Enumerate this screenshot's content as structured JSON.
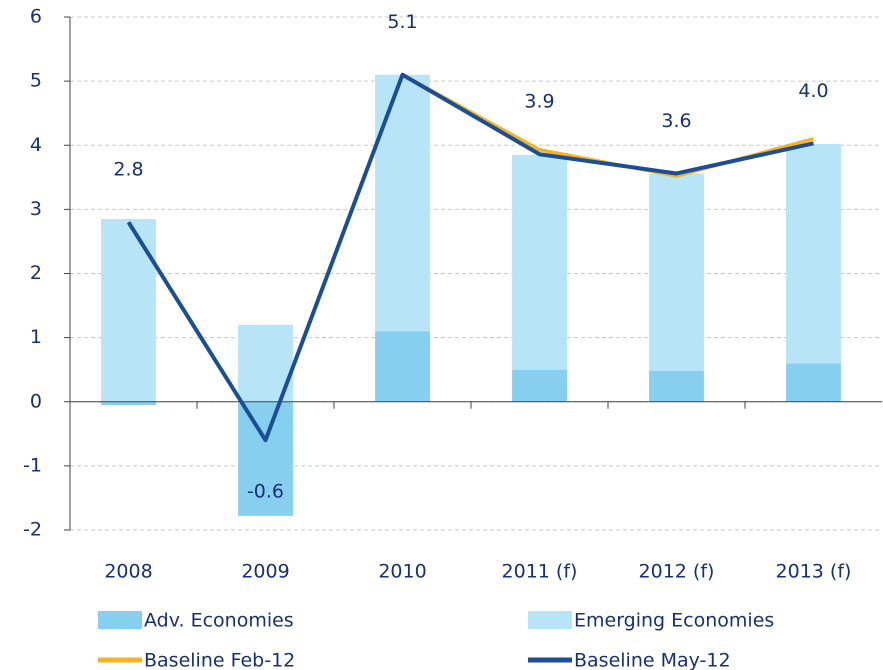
{
  "chart_data": {
    "type": "bar-line",
    "categories": [
      "2008",
      "2009",
      "2010",
      "2011 (f)",
      "2012 (f)",
      "2013 (f)"
    ],
    "bars": [
      {
        "name": "Adv. Economies",
        "color": "#87cfef",
        "values": [
          -0.05,
          -1.78,
          1.1,
          0.5,
          0.48,
          0.6
        ]
      },
      {
        "name": "Emerging Economies",
        "color": "#b8e4f7",
        "values": [
          2.85,
          1.2,
          4.0,
          3.35,
          3.08,
          3.42
        ]
      }
    ],
    "series": [
      {
        "name": "Baseline Feb-12",
        "color": "#f5b324",
        "values": [
          2.8,
          -0.6,
          5.1,
          3.93,
          3.52,
          4.1
        ]
      },
      {
        "name": "Baseline May-12",
        "color": "#1a4f96",
        "values": [
          2.8,
          -0.6,
          5.1,
          3.86,
          3.56,
          4.03
        ],
        "value_labels": [
          "2.8",
          "-0.6",
          "5.1",
          "3.9",
          "3.6",
          "4.0"
        ]
      }
    ],
    "ylim": [
      -2,
      6
    ],
    "yticks": [
      -2,
      -1,
      0,
      1,
      2,
      3,
      4,
      5,
      6
    ],
    "grid": true
  }
}
